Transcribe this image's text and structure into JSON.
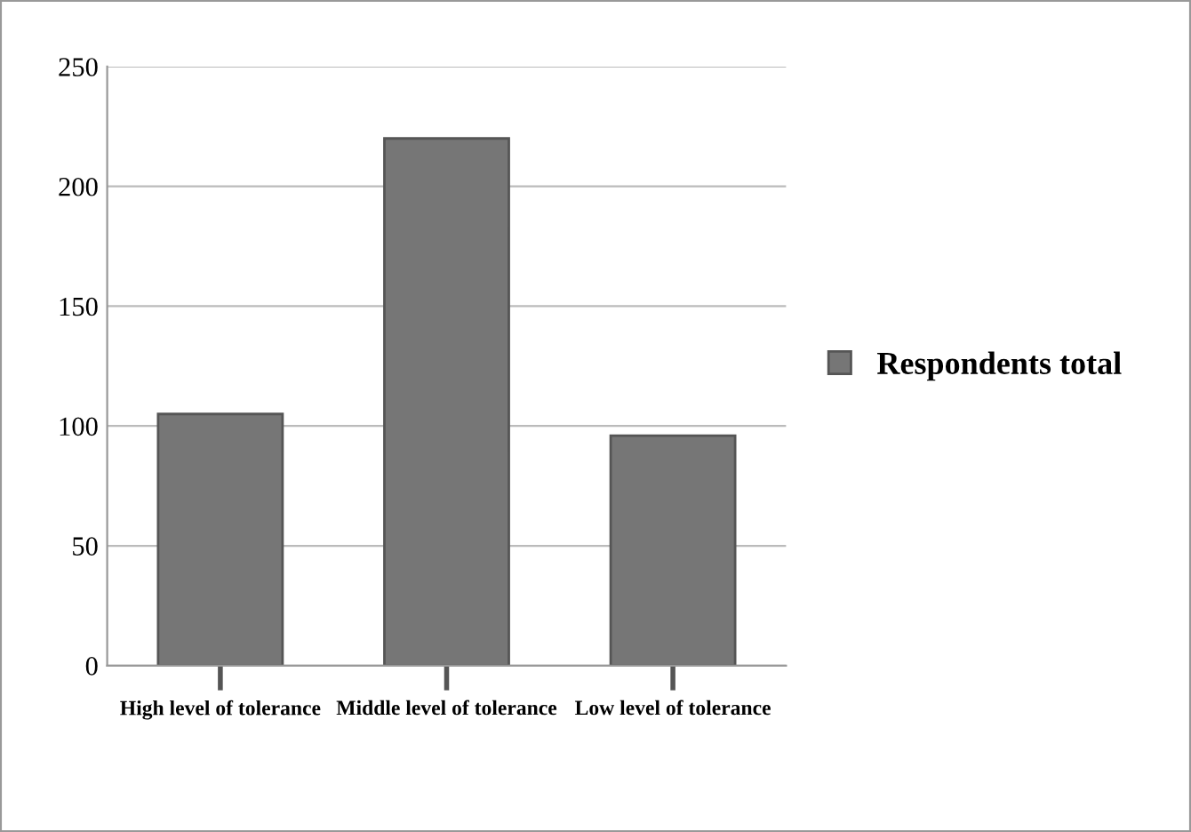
{
  "chart_data": {
    "type": "bar",
    "categories": [
      "High level of tolerance",
      "Middle level of tolerance",
      "Low level of tolerance"
    ],
    "series": [
      {
        "name": "Respondents total",
        "color": "#767676",
        "values": [
          105,
          220,
          96
        ]
      }
    ],
    "ylim": [
      0,
      250
    ],
    "yticks": [
      0,
      50,
      100,
      150,
      200,
      250
    ],
    "grid": "y",
    "legend": "right"
  }
}
